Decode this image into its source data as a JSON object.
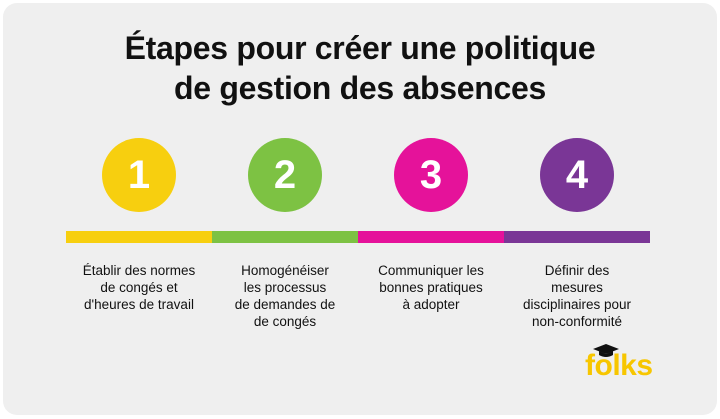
{
  "title": {
    "line1": "Étapes pour créer une politique",
    "line2": "de gestion des absences"
  },
  "steps": [
    {
      "number": "1",
      "color": "#f7cf0f",
      "lines": [
        "Établir des normes",
        "de congés et",
        "d'heures de travail"
      ]
    },
    {
      "number": "2",
      "color": "#7dc243",
      "lines": [
        "Homogénéiser",
        "les processus",
        "de demandes de",
        "de congés"
      ]
    },
    {
      "number": "3",
      "color": "#e5129a",
      "lines": [
        "Communiquer les",
        "bonnes pratiques",
        "à adopter"
      ]
    },
    {
      "number": "4",
      "color": "#7a3696",
      "lines": [
        "Définir des",
        "mesures",
        "disciplinaires pour",
        "non-conformité"
      ]
    }
  ],
  "logo": {
    "text": "folks",
    "color": "#f7c600",
    "hat_icon": "graduation-cap-icon"
  }
}
